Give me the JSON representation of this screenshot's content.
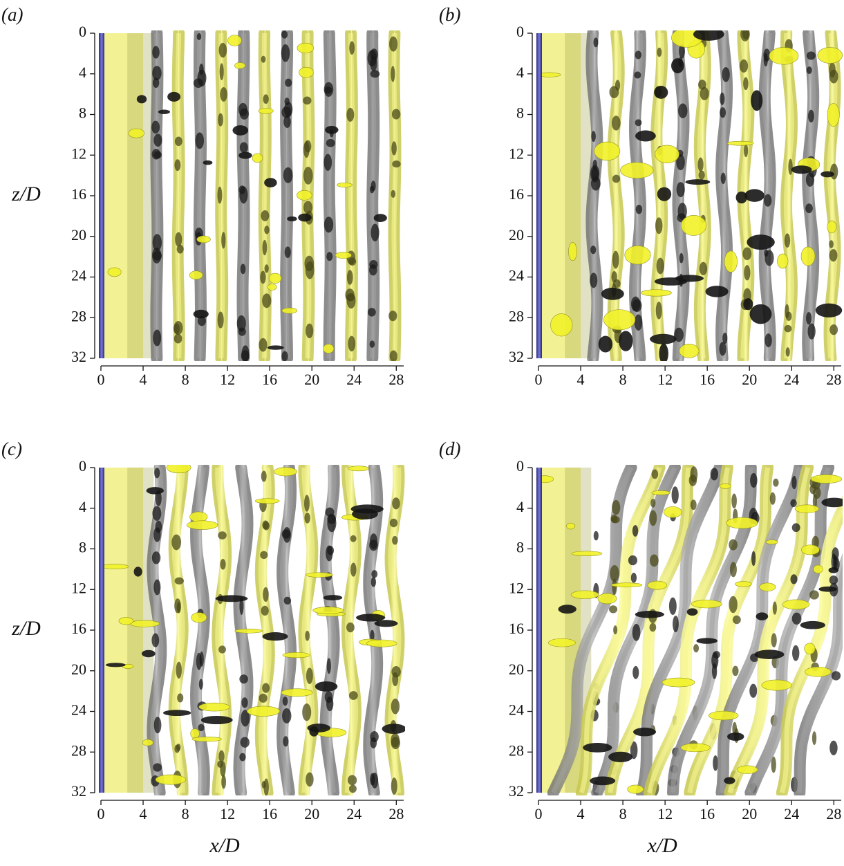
{
  "chart_data": [
    {
      "type": "isosurface",
      "panel_label": "(a)",
      "ylabel": "z/D",
      "xlim": [
        0,
        28.7
      ],
      "ylim": [
        0,
        32
      ],
      "y_inverted": true,
      "xticks": [
        0,
        4,
        8,
        12,
        16,
        20,
        24,
        28
      ],
      "yticks": [
        0,
        4,
        8,
        12,
        16,
        20,
        24,
        28,
        32
      ]
    },
    {
      "type": "isosurface",
      "panel_label": "(b)",
      "xlim": [
        0,
        28.7
      ],
      "ylim": [
        0,
        32
      ],
      "y_inverted": true,
      "xticks": [
        0,
        4,
        8,
        12,
        16,
        20,
        24,
        28
      ],
      "yticks": [
        0,
        4,
        8,
        12,
        16,
        20,
        24,
        28,
        32
      ]
    },
    {
      "type": "isosurface",
      "panel_label": "(c)",
      "ylabel": "z/D",
      "xlabel": "x/D",
      "xlim": [
        0,
        28.7
      ],
      "ylim": [
        0,
        32
      ],
      "y_inverted": true,
      "xticks": [
        0,
        4,
        8,
        12,
        16,
        20,
        24,
        28
      ],
      "yticks": [
        0,
        4,
        8,
        12,
        16,
        20,
        24,
        28,
        32
      ]
    },
    {
      "type": "isosurface",
      "panel_label": "(d)",
      "xlabel": "x/D",
      "xlim": [
        0,
        28.7
      ],
      "ylim": [
        0,
        32
      ],
      "y_inverted": true,
      "xticks": [
        0,
        4,
        8,
        12,
        16,
        20,
        24,
        28
      ],
      "yticks": [
        0,
        4,
        8,
        12,
        16,
        20,
        24,
        28,
        32
      ]
    }
  ]
}
